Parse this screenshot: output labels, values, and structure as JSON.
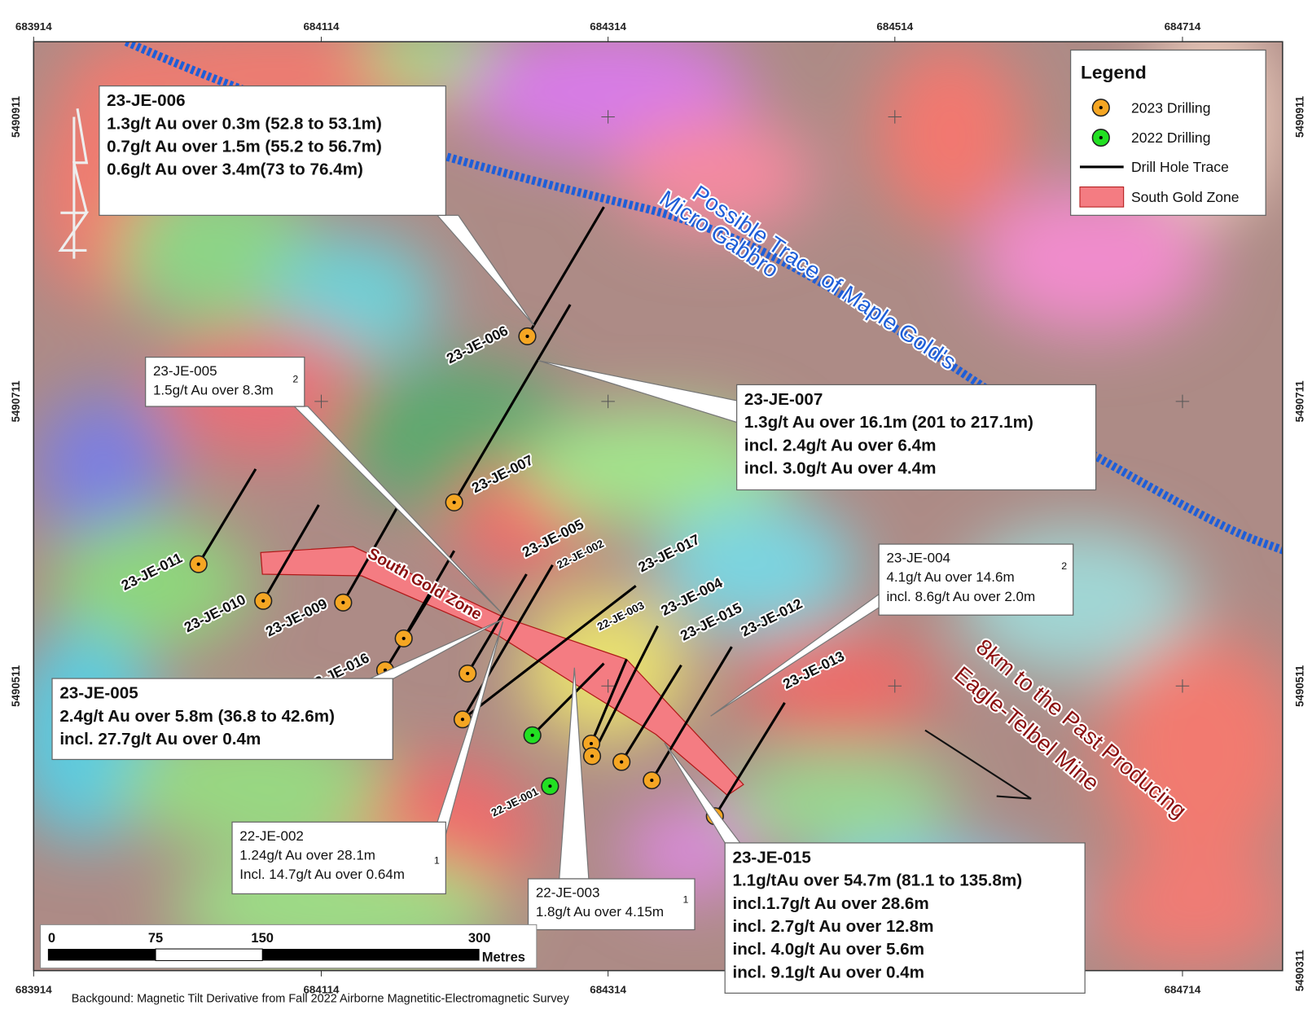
{
  "map": {
    "x_coords": [
      "683914",
      "684114",
      "684314",
      "684514",
      "684714"
    ],
    "y_coords_left": [
      "5490911",
      "5490711",
      "5490511"
    ],
    "y_coords_right": [
      "5490911",
      "5490711",
      "5490511",
      "5490311"
    ]
  },
  "legend": {
    "title": "Legend",
    "items": [
      "2023 Drilling",
      "2022 Drilling",
      "Drill Hole Trace",
      "South Gold Zone"
    ]
  },
  "callouts": [
    {
      "lines": [
        "23-JE-006",
        "1.3g/t Au over 0.3m (52.8  to 53.1m)",
        "0.7g/t Au over 1.5m (55.2  to 56.7m)",
        "0.6g/t Au over 3.4m(73 to 76.4m)"
      ]
    },
    {
      "lines": [
        "23-JE-005",
        "1.5g/t Au over 8.3m"
      ],
      "note": "2"
    },
    {
      "lines": [
        "23-JE-007",
        "1.3g/t Au over 16.1m (201 to 217.1m)",
        "incl. 2.4g/t Au over 6.4m",
        "incl. 3.0g/t Au over 4.4m"
      ]
    },
    {
      "lines": [
        "23-JE-004",
        "4.1g/t Au over 14.6m",
        "incl. 8.6g/t Au over 2.0m"
      ],
      "note": "2"
    },
    {
      "lines": [
        "23-JE-005",
        "2.4g/t Au over 5.8m (36.8 to 42.6m)",
        "incl. 27.7g/t Au over 0.4m"
      ]
    },
    {
      "lines": [
        "22-JE-002",
        "1.24g/t Au over 28.1m",
        "Incl. 14.7g/t Au over 0.64m"
      ],
      "note": "1"
    },
    {
      "lines": [
        "22-JE-003",
        "1.8g/t Au over 4.15m"
      ],
      "note": "1"
    },
    {
      "lines": [
        "23-JE-015",
        "1.1g/tAu over 54.7m (81.1 to 135.8m)",
        "incl.1.7g/t Au over 28.6m",
        "incl. 2.7g/t Au over 12.8m",
        "incl. 4.0g/t Au over 5.6m",
        "incl. 9.1g/t Au over 0.4m"
      ]
    }
  ],
  "hole_labels": [
    "23-JE-006",
    "23-JE-007",
    "23-JE-011",
    "23-JE-010",
    "23-JE-009",
    "23-JE-016",
    "23-JE-005",
    "22-JE-002",
    "23-JE-017",
    "22-JE-003",
    "23-JE-004",
    "23-JE-015",
    "23-JE-012",
    "23-JE-013",
    "22-JE-001"
  ],
  "annotations": {
    "trace": [
      "Possible Trace of Maple Gold's",
      "Micro Gabbro"
    ],
    "zone": "South Gold Zone",
    "mine": [
      "8km to the Past Producing",
      "Eagle-Telbel Mine"
    ]
  },
  "scale_bar": {
    "labels": [
      "0",
      "75",
      "150",
      "300"
    ],
    "unit": "Metres"
  },
  "caption": "Backgound: Magnetic Tilt Derivative from Fall 2022 Airborne Magnetitic-Electromagnetic Survey"
}
